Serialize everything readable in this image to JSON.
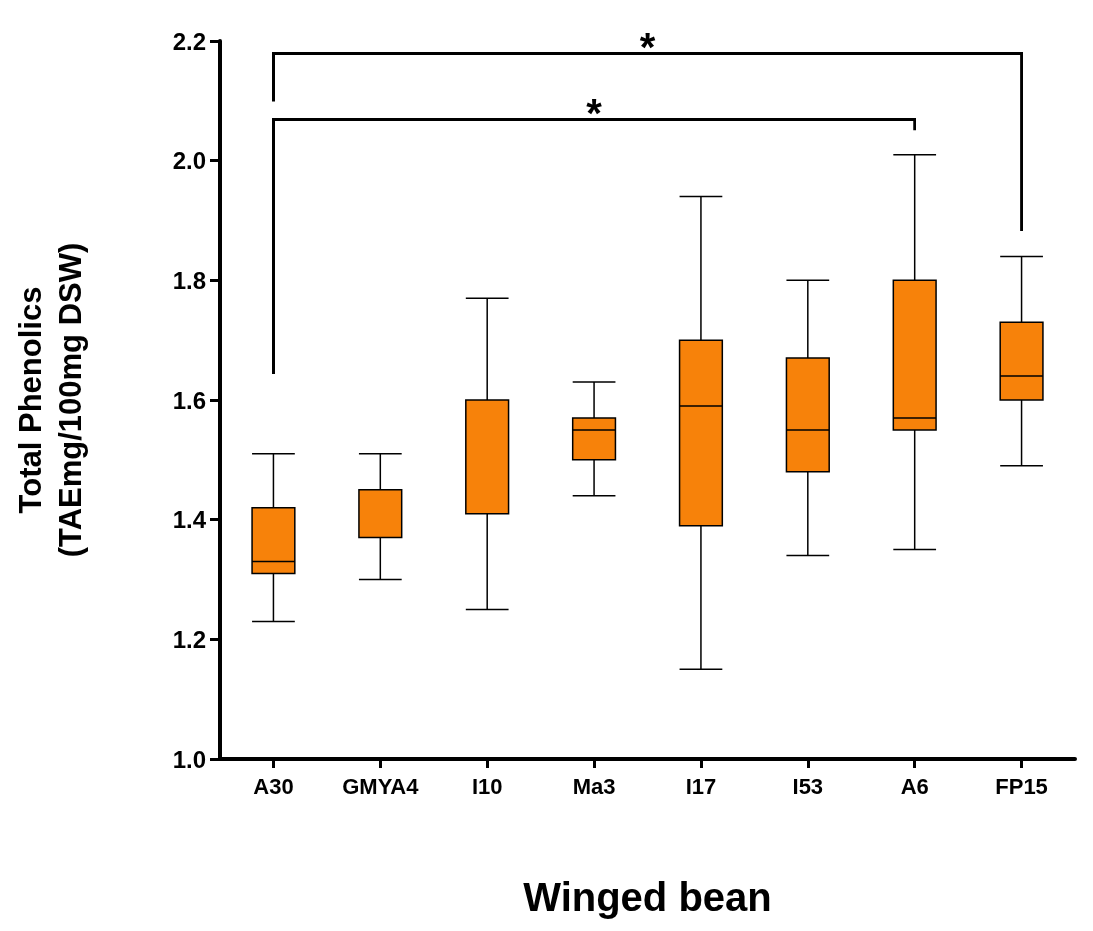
{
  "chart_data": {
    "type": "box",
    "xlabel": "Winged bean",
    "ylabel": "Total Phenolics\n(TAEmg/100mg DSW)",
    "categories": [
      "A30",
      "GMYA4",
      "I10",
      "Ma3",
      "I17",
      "I53",
      "A6",
      "FP15"
    ],
    "boxes": [
      {
        "low": 1.23,
        "q1": 1.31,
        "median": 1.33,
        "q3": 1.42,
        "high": 1.51
      },
      {
        "low": 1.3,
        "q1": 1.37,
        "median": 1.45,
        "q3": 1.45,
        "high": 1.51
      },
      {
        "low": 1.25,
        "q1": 1.41,
        "median": 1.6,
        "q3": 1.6,
        "high": 1.77
      },
      {
        "low": 1.44,
        "q1": 1.5,
        "median": 1.55,
        "q3": 1.57,
        "high": 1.63
      },
      {
        "low": 1.15,
        "q1": 1.39,
        "median": 1.59,
        "q3": 1.7,
        "high": 1.94
      },
      {
        "low": 1.34,
        "q1": 1.48,
        "median": 1.55,
        "q3": 1.67,
        "high": 1.8
      },
      {
        "low": 1.35,
        "q1": 1.55,
        "median": 1.57,
        "q3": 1.8,
        "high": 2.01
      },
      {
        "low": 1.49,
        "q1": 1.6,
        "median": 1.64,
        "q3": 1.73,
        "high": 1.84
      }
    ],
    "color": "#f7820a",
    "ylim": [
      1.0,
      2.2
    ],
    "yticks": [
      {
        "value": 1.0,
        "label": "1.0"
      },
      {
        "value": 1.2,
        "label": "1.2"
      },
      {
        "value": 1.4,
        "label": "1.4"
      },
      {
        "value": 1.6,
        "label": "1.6"
      },
      {
        "value": 1.8,
        "label": "1.8"
      },
      {
        "value": 2.0,
        "label": "2.0"
      },
      {
        "value": 2.2,
        "label": "2.2"
      }
    ],
    "annotations": [
      "*",
      "*"
    ]
  }
}
